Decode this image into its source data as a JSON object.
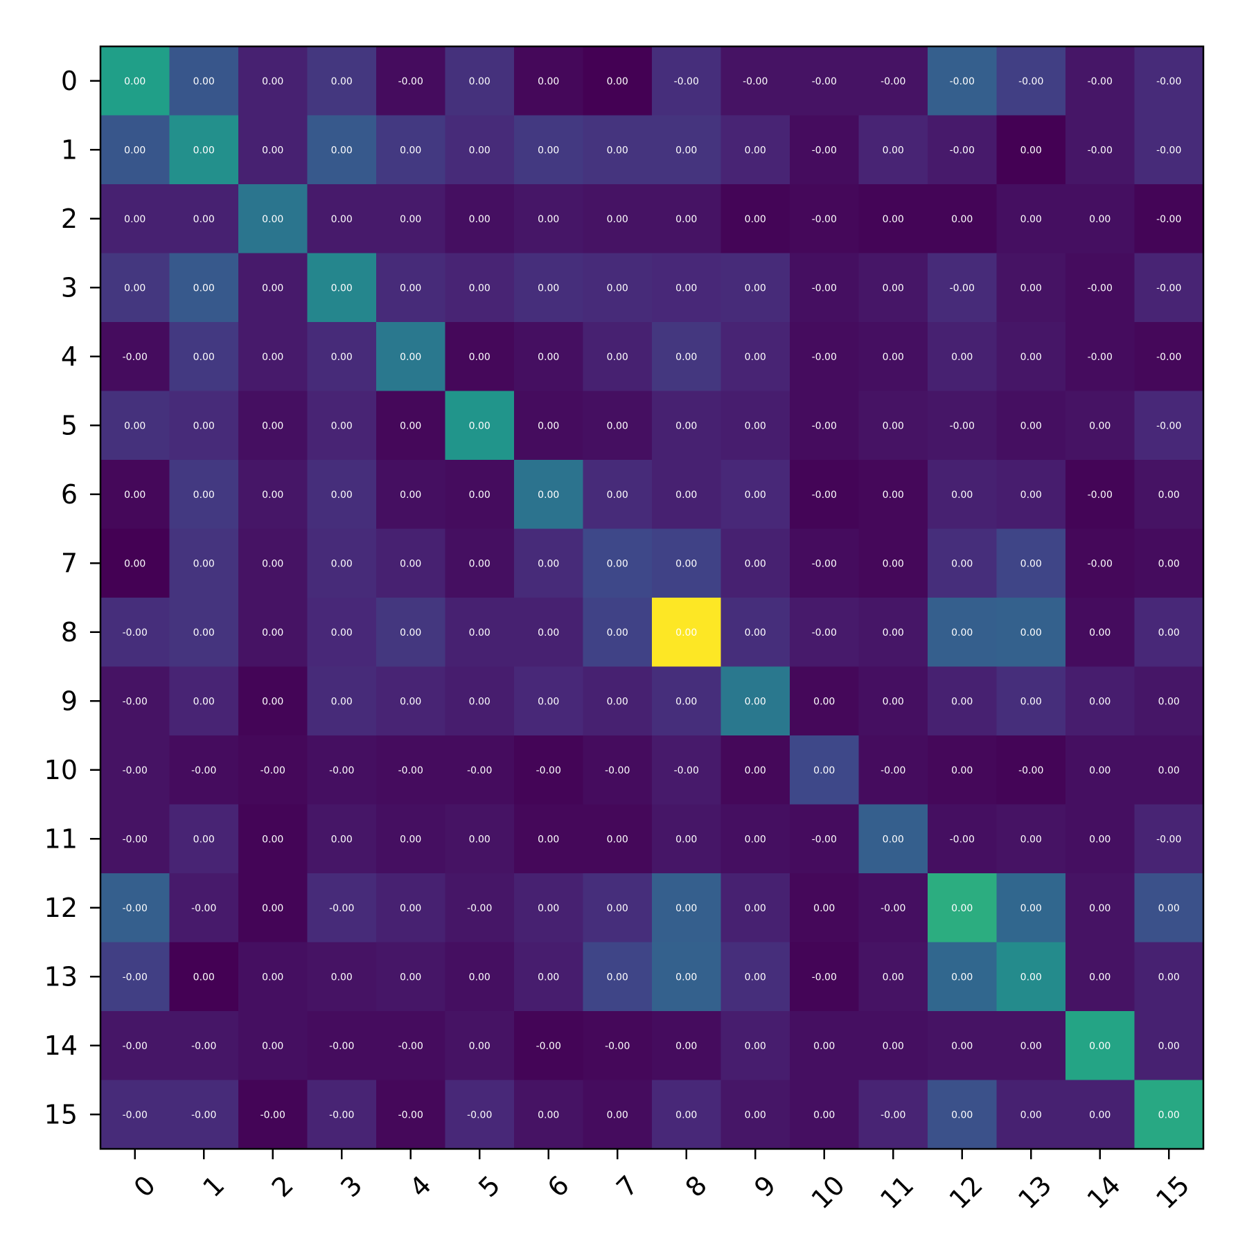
{
  "chart_data": {
    "type": "heatmap",
    "x_categories": [
      "0",
      "1",
      "2",
      "3",
      "4",
      "5",
      "6",
      "7",
      "8",
      "9",
      "10",
      "11",
      "12",
      "13",
      "14",
      "15"
    ],
    "y_categories": [
      "0",
      "1",
      "2",
      "3",
      "4",
      "5",
      "6",
      "7",
      "8",
      "9",
      "10",
      "11",
      "12",
      "13",
      "14",
      "15"
    ],
    "x_tick_rotation_deg": 45,
    "colormap": "viridis",
    "colorbar": false,
    "intensity": [
      [
        0.56,
        0.27,
        0.09,
        0.16,
        0.03,
        0.14,
        0.02,
        0.0,
        0.13,
        0.05,
        0.05,
        0.05,
        0.3,
        0.19,
        0.06,
        0.12
      ],
      [
        0.27,
        0.5,
        0.09,
        0.28,
        0.17,
        0.12,
        0.17,
        0.15,
        0.15,
        0.1,
        0.03,
        0.1,
        0.07,
        0.0,
        0.06,
        0.12
      ],
      [
        0.09,
        0.09,
        0.39,
        0.07,
        0.07,
        0.04,
        0.06,
        0.05,
        0.05,
        0.01,
        0.02,
        0.01,
        0.01,
        0.04,
        0.04,
        0.01
      ],
      [
        0.16,
        0.28,
        0.07,
        0.46,
        0.12,
        0.1,
        0.13,
        0.12,
        0.11,
        0.12,
        0.04,
        0.06,
        0.12,
        0.05,
        0.03,
        0.1
      ],
      [
        0.03,
        0.17,
        0.07,
        0.12,
        0.4,
        0.02,
        0.04,
        0.09,
        0.16,
        0.1,
        0.03,
        0.04,
        0.09,
        0.06,
        0.03,
        0.02
      ],
      [
        0.14,
        0.12,
        0.04,
        0.1,
        0.02,
        0.52,
        0.03,
        0.04,
        0.09,
        0.08,
        0.03,
        0.05,
        0.06,
        0.04,
        0.05,
        0.11
      ],
      [
        0.02,
        0.17,
        0.06,
        0.13,
        0.04,
        0.03,
        0.38,
        0.12,
        0.09,
        0.11,
        0.01,
        0.02,
        0.09,
        0.08,
        0.01,
        0.05
      ],
      [
        0.0,
        0.15,
        0.05,
        0.12,
        0.09,
        0.04,
        0.12,
        0.22,
        0.2,
        0.09,
        0.03,
        0.02,
        0.13,
        0.21,
        0.02,
        0.03
      ],
      [
        0.13,
        0.15,
        0.05,
        0.11,
        0.16,
        0.09,
        0.09,
        0.2,
        1.0,
        0.13,
        0.07,
        0.06,
        0.3,
        0.31,
        0.03,
        0.11
      ],
      [
        0.05,
        0.1,
        0.01,
        0.12,
        0.1,
        0.08,
        0.11,
        0.09,
        0.13,
        0.4,
        0.02,
        0.04,
        0.09,
        0.13,
        0.08,
        0.06
      ],
      [
        0.05,
        0.03,
        0.02,
        0.04,
        0.03,
        0.03,
        0.01,
        0.03,
        0.07,
        0.02,
        0.22,
        0.03,
        0.02,
        0.01,
        0.04,
        0.04
      ],
      [
        0.05,
        0.1,
        0.01,
        0.06,
        0.04,
        0.05,
        0.02,
        0.02,
        0.06,
        0.04,
        0.03,
        0.3,
        0.04,
        0.05,
        0.04,
        0.1
      ],
      [
        0.3,
        0.07,
        0.01,
        0.12,
        0.09,
        0.06,
        0.09,
        0.13,
        0.3,
        0.09,
        0.02,
        0.04,
        0.62,
        0.33,
        0.05,
        0.25
      ],
      [
        0.19,
        0.0,
        0.04,
        0.05,
        0.06,
        0.04,
        0.08,
        0.21,
        0.31,
        0.13,
        0.01,
        0.05,
        0.33,
        0.48,
        0.05,
        0.09
      ],
      [
        0.06,
        0.06,
        0.04,
        0.03,
        0.03,
        0.05,
        0.01,
        0.02,
        0.03,
        0.08,
        0.04,
        0.04,
        0.05,
        0.05,
        0.58,
        0.09
      ],
      [
        0.12,
        0.12,
        0.01,
        0.1,
        0.02,
        0.11,
        0.05,
        0.03,
        0.11,
        0.06,
        0.04,
        0.1,
        0.25,
        0.09,
        0.09,
        0.6
      ]
    ],
    "labels": [
      [
        "0.00",
        "0.00",
        "0.00",
        "0.00",
        "-0.00",
        "0.00",
        "0.00",
        "0.00",
        "-0.00",
        "-0.00",
        "-0.00",
        "-0.00",
        "-0.00",
        "-0.00",
        "-0.00",
        "-0.00"
      ],
      [
        "0.00",
        "0.00",
        "0.00",
        "0.00",
        "0.00",
        "0.00",
        "0.00",
        "0.00",
        "0.00",
        "0.00",
        "-0.00",
        "0.00",
        "-0.00",
        "0.00",
        "-0.00",
        "-0.00"
      ],
      [
        "0.00",
        "0.00",
        "0.00",
        "0.00",
        "0.00",
        "0.00",
        "0.00",
        "0.00",
        "0.00",
        "0.00",
        "-0.00",
        "0.00",
        "0.00",
        "0.00",
        "0.00",
        "-0.00"
      ],
      [
        "0.00",
        "0.00",
        "0.00",
        "0.00",
        "0.00",
        "0.00",
        "0.00",
        "0.00",
        "0.00",
        "0.00",
        "-0.00",
        "0.00",
        "-0.00",
        "0.00",
        "-0.00",
        "-0.00"
      ],
      [
        "-0.00",
        "0.00",
        "0.00",
        "0.00",
        "0.00",
        "0.00",
        "0.00",
        "0.00",
        "0.00",
        "0.00",
        "-0.00",
        "0.00",
        "0.00",
        "0.00",
        "-0.00",
        "-0.00"
      ],
      [
        "0.00",
        "0.00",
        "0.00",
        "0.00",
        "0.00",
        "0.00",
        "0.00",
        "0.00",
        "0.00",
        "0.00",
        "-0.00",
        "0.00",
        "-0.00",
        "0.00",
        "0.00",
        "-0.00"
      ],
      [
        "0.00",
        "0.00",
        "0.00",
        "0.00",
        "0.00",
        "0.00",
        "0.00",
        "0.00",
        "0.00",
        "0.00",
        "-0.00",
        "0.00",
        "0.00",
        "0.00",
        "-0.00",
        "0.00"
      ],
      [
        "0.00",
        "0.00",
        "0.00",
        "0.00",
        "0.00",
        "0.00",
        "0.00",
        "0.00",
        "0.00",
        "0.00",
        "-0.00",
        "0.00",
        "0.00",
        "0.00",
        "-0.00",
        "0.00"
      ],
      [
        "-0.00",
        "0.00",
        "0.00",
        "0.00",
        "0.00",
        "0.00",
        "0.00",
        "0.00",
        "0.00",
        "0.00",
        "-0.00",
        "0.00",
        "0.00",
        "0.00",
        "0.00",
        "0.00"
      ],
      [
        "-0.00",
        "0.00",
        "0.00",
        "0.00",
        "0.00",
        "0.00",
        "0.00",
        "0.00",
        "0.00",
        "0.00",
        "0.00",
        "0.00",
        "0.00",
        "0.00",
        "0.00",
        "0.00"
      ],
      [
        "-0.00",
        "-0.00",
        "-0.00",
        "-0.00",
        "-0.00",
        "-0.00",
        "-0.00",
        "-0.00",
        "-0.00",
        "0.00",
        "0.00",
        "-0.00",
        "0.00",
        "-0.00",
        "0.00",
        "0.00"
      ],
      [
        "-0.00",
        "0.00",
        "0.00",
        "0.00",
        "0.00",
        "0.00",
        "0.00",
        "0.00",
        "0.00",
        "0.00",
        "-0.00",
        "0.00",
        "-0.00",
        "0.00",
        "0.00",
        "-0.00"
      ],
      [
        "-0.00",
        "-0.00",
        "0.00",
        "-0.00",
        "0.00",
        "-0.00",
        "0.00",
        "0.00",
        "0.00",
        "0.00",
        "0.00",
        "-0.00",
        "0.00",
        "0.00",
        "0.00",
        "0.00"
      ],
      [
        "-0.00",
        "0.00",
        "0.00",
        "0.00",
        "0.00",
        "0.00",
        "0.00",
        "0.00",
        "0.00",
        "0.00",
        "-0.00",
        "0.00",
        "0.00",
        "0.00",
        "0.00",
        "0.00"
      ],
      [
        "-0.00",
        "-0.00",
        "0.00",
        "-0.00",
        "-0.00",
        "0.00",
        "-0.00",
        "-0.00",
        "0.00",
        "0.00",
        "0.00",
        "0.00",
        "0.00",
        "0.00",
        "0.00",
        "0.00"
      ],
      [
        "-0.00",
        "-0.00",
        "-0.00",
        "-0.00",
        "-0.00",
        "-0.00",
        "0.00",
        "0.00",
        "0.00",
        "0.00",
        "0.00",
        "-0.00",
        "0.00",
        "0.00",
        "0.00",
        "0.00"
      ]
    ],
    "title": "",
    "xlabel": "",
    "ylabel": ""
  }
}
